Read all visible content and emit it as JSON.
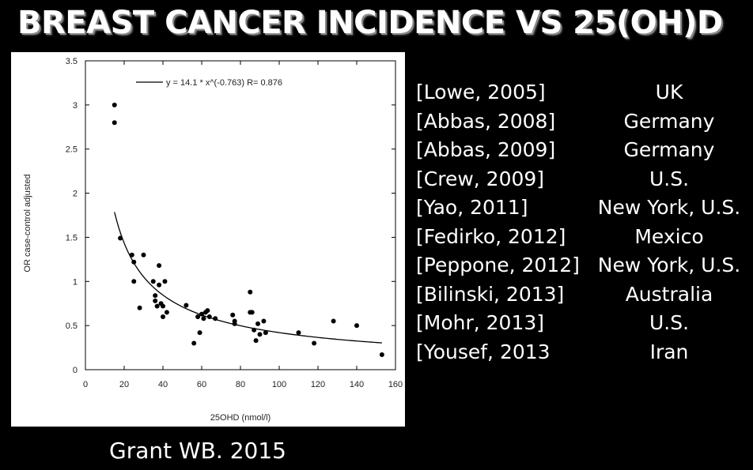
{
  "page_title": "BREAST CANCER INCIDENCE VS 25(OH)D",
  "citation": "Grant WB. 2015",
  "studies": [
    {
      "ref": "[Lowe, 2005]",
      "location": "UK"
    },
    {
      "ref": "[Abbas, 2008]",
      "location": "Germany"
    },
    {
      "ref": "[Abbas, 2009]",
      "location": "Germany"
    },
    {
      "ref": "[Crew, 2009]",
      "location": "U.S."
    },
    {
      "ref": "[Yao, 2011]",
      "location": "New York, U.S."
    },
    {
      "ref": "[Fedirko, 2012]",
      "location": "Mexico"
    },
    {
      "ref": "[Peppone, 2012]",
      "location": "New York, U.S."
    },
    {
      "ref": "[Bilinski, 2013]",
      "location": "Australia"
    },
    {
      "ref": "[Mohr, 2013]",
      "location": "U.S."
    },
    {
      "ref": "[Yousef, 2013",
      "location": "Iran"
    }
  ],
  "colors": {
    "background": "#000000",
    "panel": "#ffffff",
    "text": "#ffffff",
    "points": "#000000",
    "curve": "#000000"
  },
  "chart_data": {
    "type": "scatter",
    "xlabel": "25OHD (nmol/l)",
    "ylabel": "OR case-control adjusted",
    "xlim": [
      0,
      160
    ],
    "ylim": [
      0,
      3.5
    ],
    "x_ticks": [
      0,
      20,
      40,
      60,
      80,
      100,
      120,
      140,
      160
    ],
    "y_ticks": [
      0,
      0.5,
      1,
      1.5,
      2,
      2.5,
      3,
      3.5
    ],
    "grid": false,
    "legend_position": "top",
    "fit": {
      "label": "y = 14.1 * x^(-0.763)   R= 0.876",
      "a": 14.1,
      "b": -0.763,
      "x_range": [
        15,
        153
      ]
    },
    "points": [
      [
        15,
        3.0
      ],
      [
        15,
        2.8
      ],
      [
        18,
        1.49
      ],
      [
        24,
        1.3
      ],
      [
        25,
        1.22
      ],
      [
        25,
        1.0
      ],
      [
        28,
        0.7
      ],
      [
        30,
        1.3
      ],
      [
        35,
        1.0
      ],
      [
        36,
        0.78
      ],
      [
        36,
        0.84
      ],
      [
        37,
        0.72
      ],
      [
        38,
        1.18
      ],
      [
        38,
        0.96
      ],
      [
        39,
        0.75
      ],
      [
        40,
        0.6
      ],
      [
        40,
        0.72
      ],
      [
        41,
        1.0
      ],
      [
        42,
        0.65
      ],
      [
        52,
        0.73
      ],
      [
        56,
        0.3
      ],
      [
        58,
        0.6
      ],
      [
        59,
        0.42
      ],
      [
        60,
        0.63
      ],
      [
        61,
        0.58
      ],
      [
        62,
        0.65
      ],
      [
        63,
        0.67
      ],
      [
        64,
        0.6
      ],
      [
        67,
        0.58
      ],
      [
        76,
        0.62
      ],
      [
        77,
        0.55
      ],
      [
        77,
        0.52
      ],
      [
        85,
        0.88
      ],
      [
        85,
        0.65
      ],
      [
        86,
        0.65
      ],
      [
        87,
        0.45
      ],
      [
        88,
        0.33
      ],
      [
        89,
        0.52
      ],
      [
        90,
        0.4
      ],
      [
        92,
        0.55
      ],
      [
        93,
        0.42
      ],
      [
        110,
        0.42
      ],
      [
        118,
        0.3
      ],
      [
        128,
        0.55
      ],
      [
        140,
        0.5
      ],
      [
        153,
        0.17
      ]
    ]
  }
}
